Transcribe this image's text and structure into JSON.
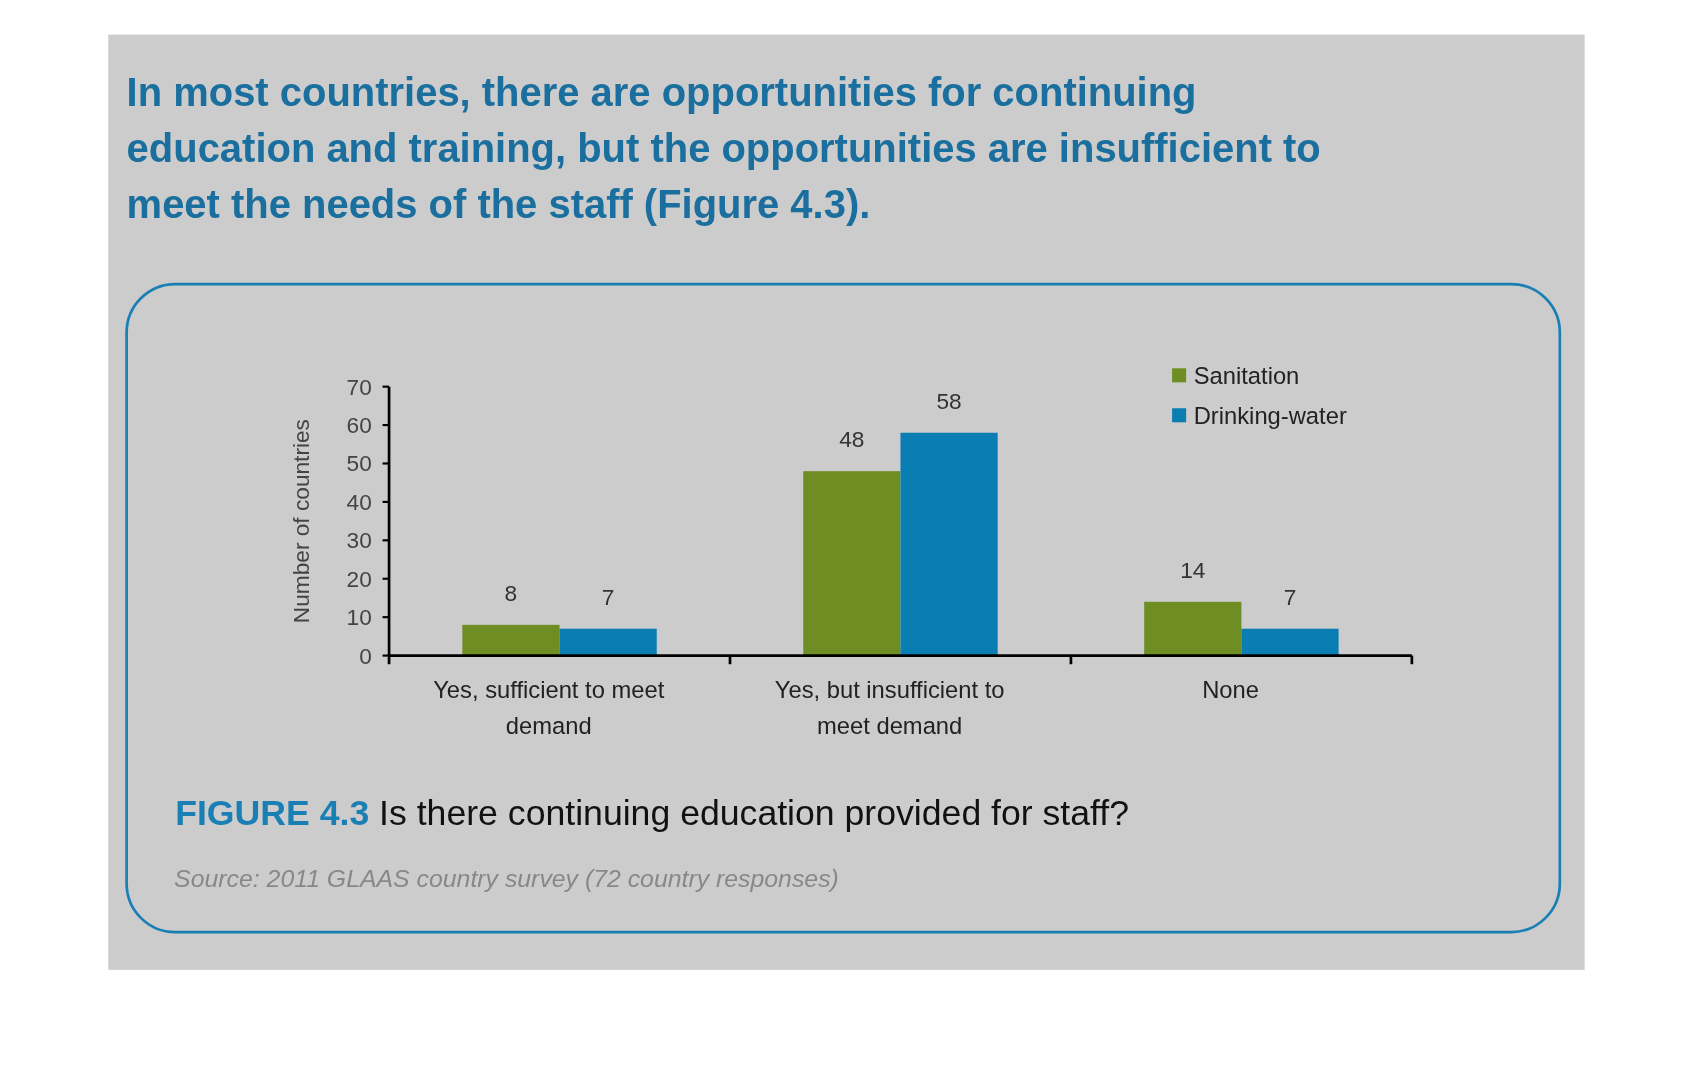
{
  "chart_data": {
    "type": "bar",
    "title": "In most countries, there are opportunities for continuing education and training, but the opportunities are insufficient to meet the needs of the staff (Figure 4.3).",
    "subtitle": "FIGURE 4.3 Is there continuing education provided for staff?",
    "ylabel": "Number of countries",
    "categories": [
      "Yes, sufficient to meet demand",
      "Yes, but insufficient to meet demand",
      "None"
    ],
    "series": [
      {
        "name": "Sanitation",
        "color": "#6e8e24",
        "values": [
          8,
          48,
          14
        ]
      },
      {
        "name": "Drinking-water",
        "color": "#0a7db3",
        "values": [
          7,
          58,
          7
        ]
      }
    ],
    "ylim": [
      0,
      70
    ],
    "yticks": [
      0,
      10,
      20,
      30,
      40,
      50,
      60,
      70
    ],
    "data_labels": true,
    "legend": "top right",
    "grid": false,
    "annotations": [
      "Source: 2011 GLAAS country survey (72 country responses)"
    ]
  }
}
